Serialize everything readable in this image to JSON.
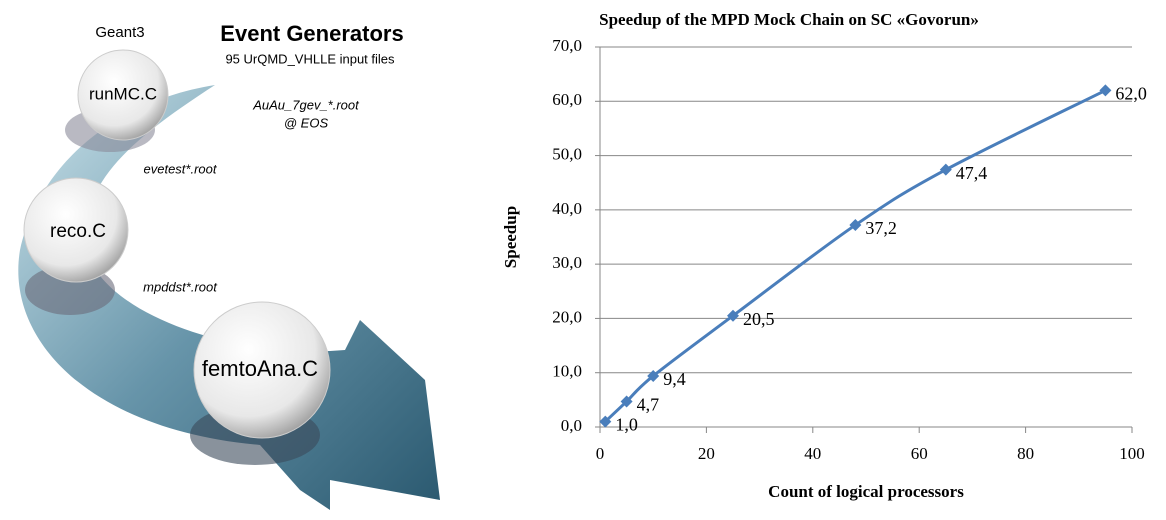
{
  "diagram": {
    "simulator": "Geant3",
    "title": "Event Generators",
    "subtitle": "95 UrQMD_VHLLE input files",
    "nodes": [
      {
        "label": "runMC.C"
      },
      {
        "label": "reco.C"
      },
      {
        "label": "femtoAna.C"
      }
    ],
    "files": [
      "AuAu_7gev_*.root",
      "@ EOS",
      "evetest*.root",
      "mpddst*.root"
    ]
  },
  "chart_data": {
    "type": "line",
    "title": "Speedup of the MPD Mock Chain on SC «Govorun»",
    "x_label": "Count of logical processors",
    "y_label": "Speedup",
    "x": [
      1,
      5,
      10,
      25,
      48,
      65,
      95
    ],
    "values": [
      1.0,
      4.7,
      9.4,
      20.5,
      37.2,
      47.4,
      62.0
    ],
    "value_labels": [
      "1,0",
      "4,7",
      "9,4",
      "20,5",
      "37,2",
      "47,4",
      "62,0"
    ],
    "color": "#4a7ebb",
    "xlim": [
      0,
      100
    ],
    "xticks": [
      0,
      20,
      40,
      60,
      80,
      100
    ],
    "ylim": [
      0,
      70
    ],
    "yticks": [
      {
        "value": 0,
        "label": "0,0"
      },
      {
        "value": 10,
        "label": "10,0"
      },
      {
        "value": 20,
        "label": "20,0"
      },
      {
        "value": 30,
        "label": "30,0"
      },
      {
        "value": 40,
        "label": "40,0"
      },
      {
        "value": 50,
        "label": "50,0"
      },
      {
        "value": 60,
        "label": "60,0"
      },
      {
        "value": 70,
        "label": "70,0"
      }
    ],
    "grid": true
  }
}
